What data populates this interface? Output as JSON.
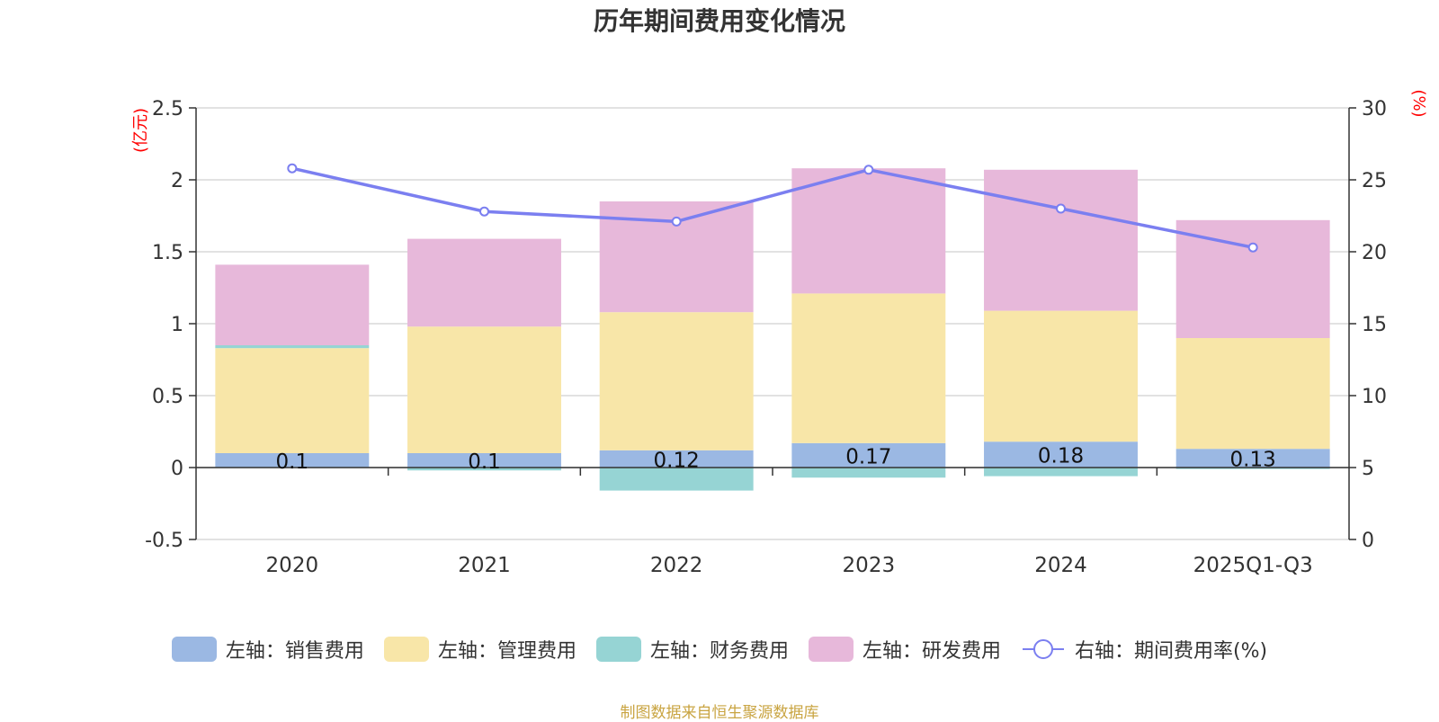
{
  "chart_data": {
    "type": "bar",
    "stacked": true,
    "title": "历年期间费用变化情况",
    "categories": [
      "2020",
      "2021",
      "2022",
      "2023",
      "2024",
      "2025Q1-Q3"
    ],
    "left_axis": {
      "unit_label": "(亿元)",
      "ylim": [
        -0.5,
        2.5
      ],
      "ticks": [
        "2.5",
        "2",
        "1.5",
        "1",
        "0.5",
        "0",
        "-0.5"
      ]
    },
    "right_axis": {
      "unit_label": "(%)",
      "ylim": [
        0,
        30
      ],
      "ticks": [
        "30",
        "25",
        "20",
        "15",
        "10",
        "5",
        "0"
      ]
    },
    "series": [
      {
        "name": "左轴：销售费用",
        "axis": "left",
        "color": "#9bb8e3",
        "values": [
          0.1,
          0.1,
          0.12,
          0.17,
          0.18,
          0.13
        ],
        "labels": [
          "0.1",
          "0.1",
          "0.12",
          "0.17",
          "0.18",
          "0.13"
        ]
      },
      {
        "name": "左轴：管理费用",
        "axis": "left",
        "color": "#f8e6a8",
        "values": [
          0.73,
          0.88,
          0.96,
          1.04,
          0.91,
          0.77
        ]
      },
      {
        "name": "左轴：财务费用",
        "axis": "left",
        "color": "#96d4d4",
        "values": [
          0.02,
          -0.02,
          -0.16,
          -0.07,
          -0.06,
          -0.01
        ]
      },
      {
        "name": "左轴：研发费用",
        "axis": "left",
        "color": "#e7b8da",
        "values": [
          0.56,
          0.61,
          0.77,
          0.87,
          0.98,
          0.82
        ]
      },
      {
        "name": "右轴：期间费用率(%)",
        "axis": "right",
        "type": "line",
        "color": "#7b7ff0",
        "values": [
          25.8,
          22.8,
          22.1,
          25.7,
          23.0,
          20.3
        ]
      }
    ],
    "legend_position": "bottom"
  },
  "source_note": "制图数据来自恒生聚源数据库"
}
